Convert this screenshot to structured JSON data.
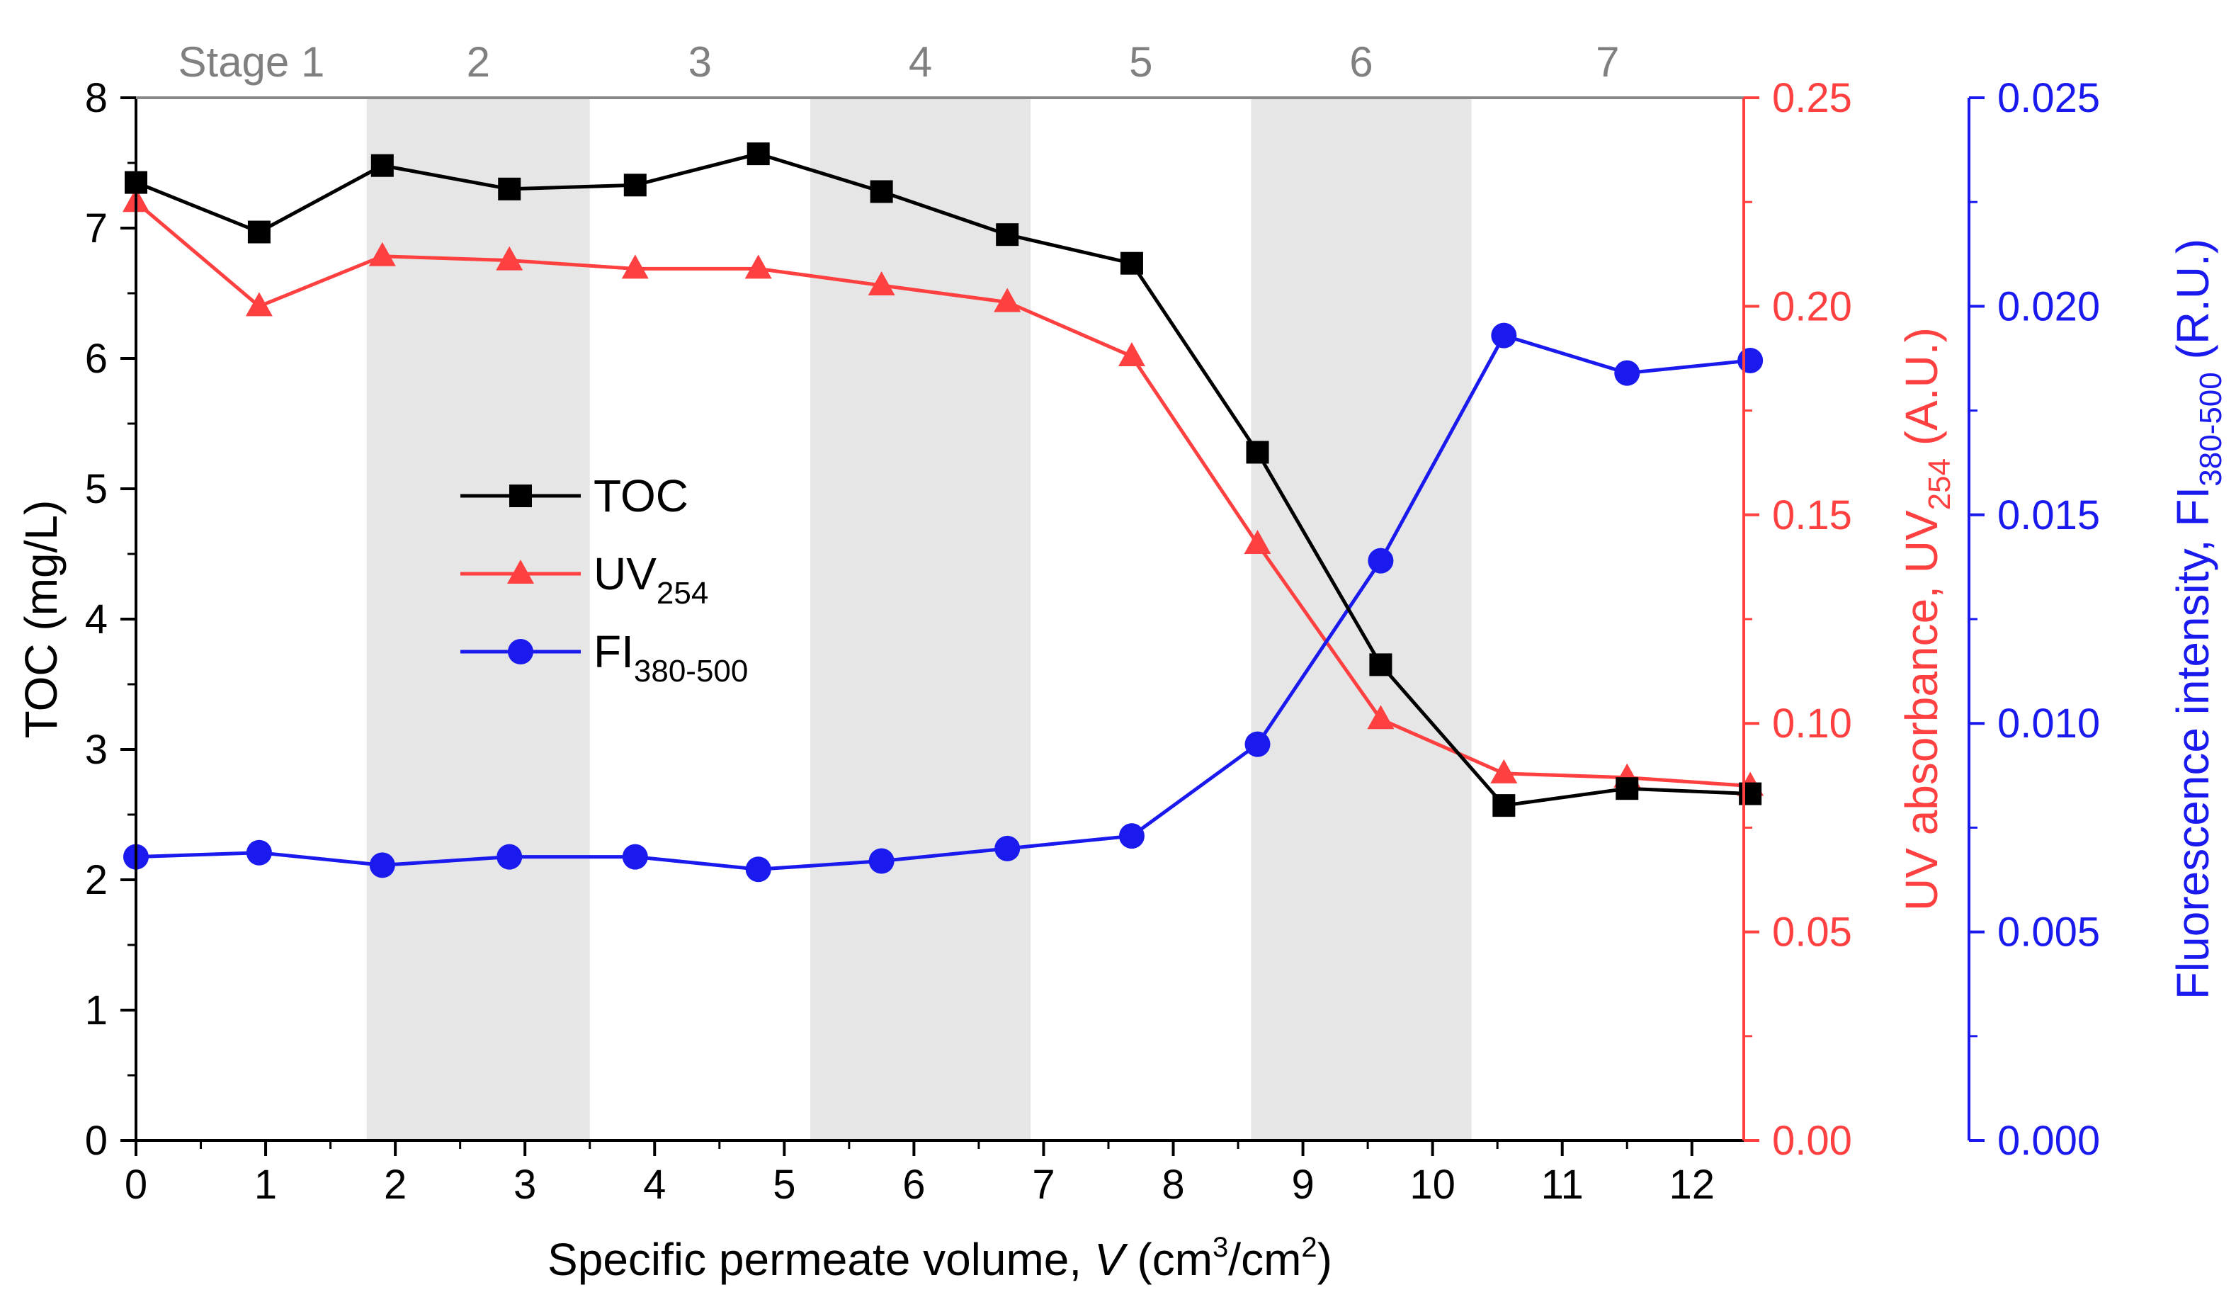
{
  "chart_data": {
    "type": "line",
    "xlabel": {
      "main": "Specific permeate volume, ",
      "var": "V",
      "unit_open": " (cm",
      "sup1": "3",
      "unit_mid": "/cm",
      "sup2": "2",
      "unit_close": ")"
    },
    "xlim": [
      0,
      12.4
    ],
    "x_ticks": [
      0,
      1,
      2,
      3,
      4,
      5,
      6,
      7,
      8,
      9,
      10,
      11,
      12
    ],
    "axes": {
      "left": {
        "label": "TOC (mg/L)",
        "ylim": [
          0,
          8
        ],
        "ticks": [
          "0",
          "1",
          "2",
          "3",
          "4",
          "5",
          "6",
          "7",
          "8"
        ],
        "tick_values": [
          0,
          1,
          2,
          3,
          4,
          5,
          6,
          7,
          8
        ],
        "color": "#000000"
      },
      "right1": {
        "label_main": "UV absorbance, UV",
        "label_sub": "254",
        "label_tail": " (A.U.)",
        "ylim": [
          0,
          0.25
        ],
        "ticks": [
          "0.00",
          "0.05",
          "0.10",
          "0.15",
          "0.20",
          "0.25"
        ],
        "tick_values": [
          0,
          0.05,
          0.1,
          0.15,
          0.2,
          0.25
        ],
        "color": "#ff4040"
      },
      "right2": {
        "label_main": "Fluorescence intensity, FI",
        "label_sub": "380-500",
        "label_tail": " (R.U.)",
        "ylim": [
          0,
          0.025
        ],
        "ticks": [
          "0.000",
          "0.005",
          "0.010",
          "0.015",
          "0.020",
          "0.025"
        ],
        "tick_values": [
          0,
          0.005,
          0.01,
          0.015,
          0.02,
          0.025
        ],
        "color": "#1a1aee"
      }
    },
    "stages": [
      {
        "label": "Stage 1",
        "x0": 0,
        "x1": 1.78,
        "shaded": false
      },
      {
        "label": "2",
        "x0": 1.78,
        "x1": 3.5,
        "shaded": true
      },
      {
        "label": "3",
        "x0": 3.5,
        "x1": 5.2,
        "shaded": false
      },
      {
        "label": "4",
        "x0": 5.2,
        "x1": 6.9,
        "shaded": true
      },
      {
        "label": "5",
        "x0": 6.9,
        "x1": 8.6,
        "shaded": false
      },
      {
        "label": "6",
        "x0": 8.6,
        "x1": 10.3,
        "shaded": true
      },
      {
        "label": "7",
        "x0": 10.3,
        "x1": 12.4,
        "shaded": false
      }
    ],
    "stage_shade_color": "#e6e6e6",
    "stage_label_color": "#808080",
    "series": [
      {
        "name": "TOC",
        "axis": "left",
        "marker": "square",
        "color": "#000000",
        "x": [
          0,
          0.95,
          1.9,
          2.88,
          3.85,
          4.8,
          5.75,
          6.72,
          7.68,
          8.65,
          9.6,
          10.55,
          11.5,
          12.45
        ],
        "y": [
          7.35,
          6.97,
          7.48,
          7.3,
          7.33,
          7.57,
          7.28,
          6.95,
          6.73,
          5.28,
          3.65,
          2.57,
          2.7,
          2.66
        ]
      },
      {
        "name": "UV",
        "sub": "254",
        "axis": "right1",
        "marker": "triangle",
        "color": "#ff4040",
        "x": [
          0,
          0.95,
          1.9,
          2.88,
          3.85,
          4.8,
          5.75,
          6.72,
          7.68,
          8.65,
          9.6,
          10.55,
          11.5,
          12.45
        ],
        "y": [
          0.225,
          0.2,
          0.212,
          0.211,
          0.209,
          0.209,
          0.205,
          0.201,
          0.188,
          0.143,
          0.101,
          0.088,
          0.087,
          0.085
        ]
      },
      {
        "name": "FI",
        "sub": "380-500",
        "axis": "right2",
        "marker": "circle",
        "color": "#1a1aee",
        "x": [
          0,
          0.95,
          1.9,
          2.88,
          3.85,
          4.8,
          5.75,
          6.72,
          7.68,
          8.65,
          9.6,
          10.55,
          11.5,
          12.45
        ],
        "y": [
          0.0068,
          0.0069,
          0.0066,
          0.0068,
          0.0068,
          0.0065,
          0.0067,
          0.007,
          0.0073,
          0.0095,
          0.0139,
          0.0193,
          0.0184,
          0.0187
        ]
      }
    ],
    "legend": {
      "position": "center-left"
    }
  }
}
